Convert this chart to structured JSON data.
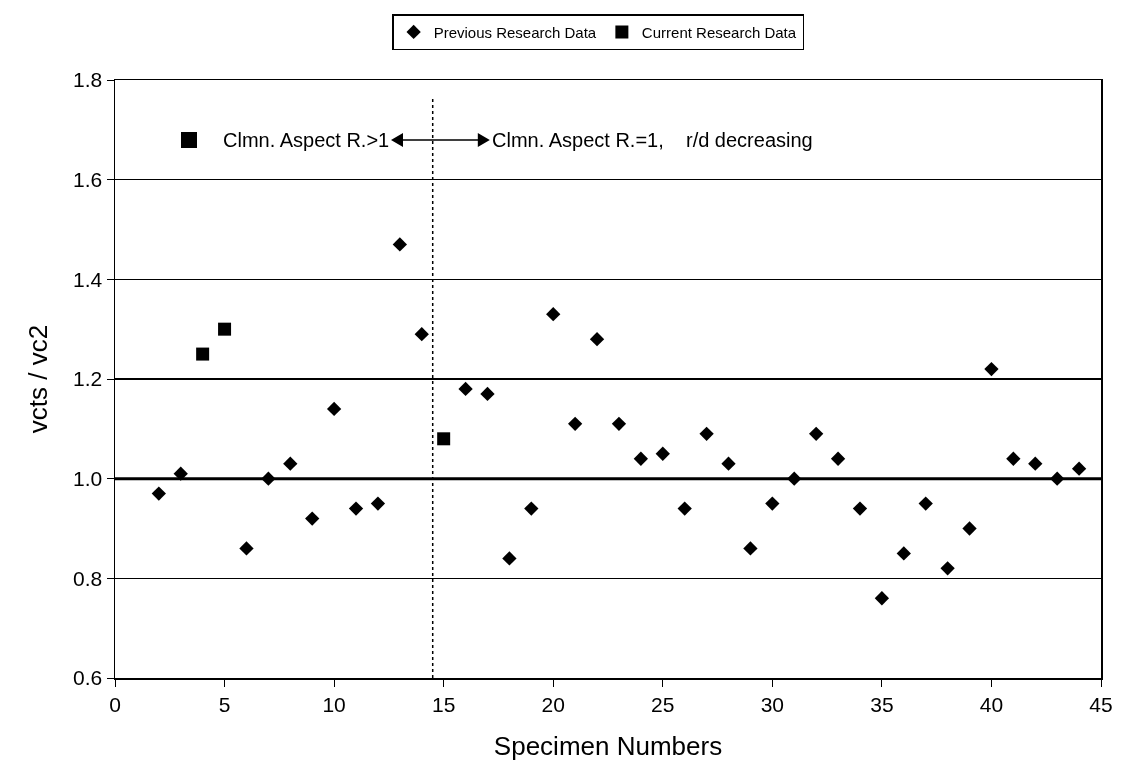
{
  "chart_data": {
    "type": "scatter",
    "xlabel": "Specimen Numbers",
    "ylabel": "vcts / vc2",
    "series": [
      {
        "name": "Previous Research Data",
        "color": "#000000",
        "marker": "diamond",
        "x": [
          2,
          3,
          6,
          7,
          8,
          9,
          10,
          11,
          12,
          13,
          14,
          16,
          17,
          18,
          19,
          20,
          21,
          22,
          23,
          24,
          25,
          26,
          27,
          28,
          29,
          30,
          31,
          32,
          33,
          34,
          35,
          36,
          37,
          38,
          39,
          40,
          41,
          42,
          43,
          44
        ],
        "values": [
          0.97,
          1.01,
          0.86,
          1.0,
          1.03,
          0.92,
          1.14,
          0.94,
          0.95,
          1.47,
          1.29,
          1.18,
          1.17,
          0.84,
          0.94,
          1.33,
          1.11,
          1.28,
          1.11,
          1.04,
          1.05,
          0.94,
          1.09,
          1.03,
          0.86,
          0.95,
          1.0,
          1.09,
          1.04,
          0.94,
          0.76,
          0.85,
          0.95,
          0.82,
          0.9,
          1.22,
          1.04,
          1.03,
          1.0,
          1.02
        ]
      },
      {
        "name": "Current Research Data",
        "color": "#000000",
        "marker": "square",
        "x": [
          4,
          5,
          15
        ],
        "values": [
          1.25,
          1.3,
          1.08
        ]
      }
    ],
    "xlim": [
      0,
      45
    ],
    "xticks": [
      0,
      5,
      10,
      15,
      20,
      25,
      30,
      35,
      40,
      45
    ],
    "ylim": [
      0.6,
      1.8
    ],
    "yticks": [
      {
        "value": 0.6,
        "label": "0.6"
      },
      {
        "value": 0.8,
        "label": "0.8"
      },
      {
        "value": 1.0,
        "label": "1.0"
      },
      {
        "value": 1.2,
        "label": "1.2"
      },
      {
        "value": 1.4,
        "label": "1.4"
      },
      {
        "value": 1.6,
        "label": "1.6"
      },
      {
        "value": 1.8,
        "label": "1.8"
      }
    ],
    "grid": "y",
    "legend": "top",
    "ref_lines": [
      {
        "axis": "x",
        "value": 14.5,
        "line_style": "dotted",
        "color": "#000000"
      },
      {
        "axis": "y",
        "value": 1.0,
        "color": "#000000"
      }
    ],
    "annotations": [
      "Clmn. Aspect R.>1",
      "Clmn. Aspect R.=1,    r/d decreasing"
    ]
  }
}
